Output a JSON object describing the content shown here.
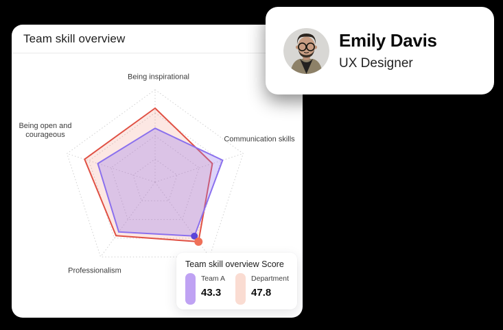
{
  "background": "#000000",
  "main_card": {
    "title": "Team skill overview"
  },
  "profile_card": {
    "name": "Emily Davis",
    "role": "UX Designer",
    "avatar": "man-with-glasses-photo"
  },
  "tooltip": {
    "title": "Team skill overview Score",
    "entries": [
      {
        "label": "Team A",
        "value": "43.3",
        "swatch_color": "#bfa2f3"
      },
      {
        "label": "Department",
        "value": "47.8",
        "swatch_color": "#fadcd2"
      }
    ]
  },
  "chart_data": {
    "type": "radar",
    "title": "Team skill overview",
    "axes": [
      "Being inspirational",
      "Communication skills",
      "",
      "Professionalism",
      "Being open and courageous"
    ],
    "max": 60,
    "grid_levels": [
      0.25,
      0.5,
      0.75,
      1
    ],
    "grid_color": "#cfcfcf",
    "series": [
      {
        "name": "Department",
        "values": [
          48,
          39,
          47.8,
          43,
          48
        ],
        "stroke": "#e05043",
        "fill": "rgba(238,120,100,0.18)"
      },
      {
        "name": "Team A",
        "values": [
          35,
          46,
          43.3,
          40,
          39
        ],
        "stroke": "#8a70ee",
        "fill": "rgba(150,118,235,0.32)"
      }
    ],
    "highlighted_axis_index": 2,
    "markers": [
      {
        "series": "Team A",
        "color": "#5b45d9",
        "radius": 5
      },
      {
        "series": "Department",
        "color": "#ef7058",
        "radius": 6
      }
    ],
    "connector_color": "#7a68e8",
    "legend_position": "tooltip"
  }
}
